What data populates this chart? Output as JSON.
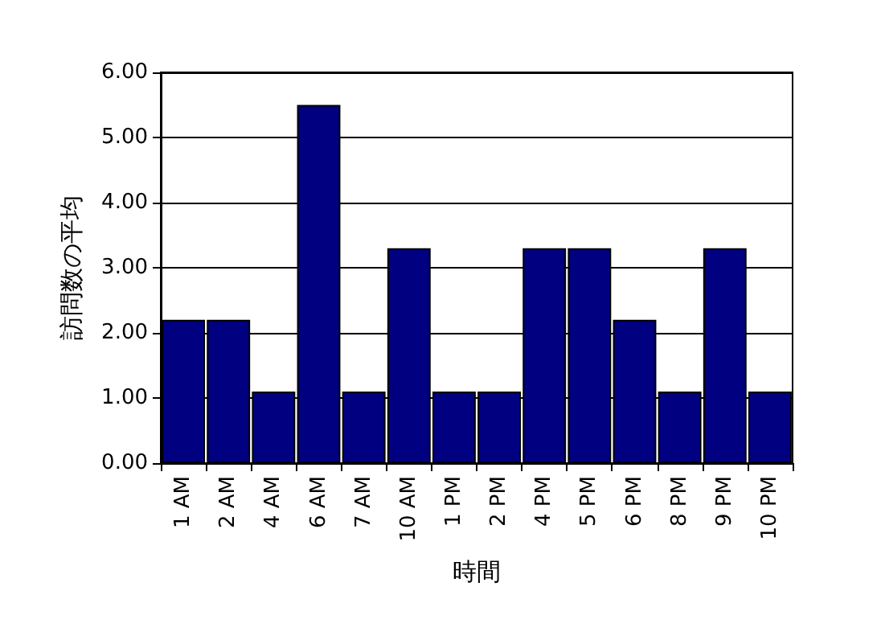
{
  "chart_data": {
    "type": "bar",
    "xlabel": "時間",
    "ylabel": "訪問数の平均",
    "categories": [
      "1 AM",
      "2 AM",
      "4 AM",
      "6 AM",
      "7 AM",
      "10 AM",
      "1 PM",
      "2 PM",
      "4 PM",
      "5 PM",
      "6 PM",
      "8 PM",
      "9 PM",
      "10 PM"
    ],
    "values": [
      2.2,
      2.2,
      1.1,
      5.5,
      1.1,
      3.3,
      1.1,
      1.1,
      3.3,
      3.3,
      2.2,
      1.1,
      3.3,
      1.1
    ],
    "color": "#000080",
    "ylim": [
      0,
      6
    ],
    "yticks": [
      {
        "value": 0,
        "label": "0.00"
      },
      {
        "value": 1,
        "label": "1.00"
      },
      {
        "value": 2,
        "label": "2.00"
      },
      {
        "value": 3,
        "label": "3.00"
      },
      {
        "value": 4,
        "label": "4.00"
      },
      {
        "value": 5,
        "label": "5.00"
      },
      {
        "value": 6,
        "label": "6.00"
      }
    ],
    "grid": "y"
  }
}
